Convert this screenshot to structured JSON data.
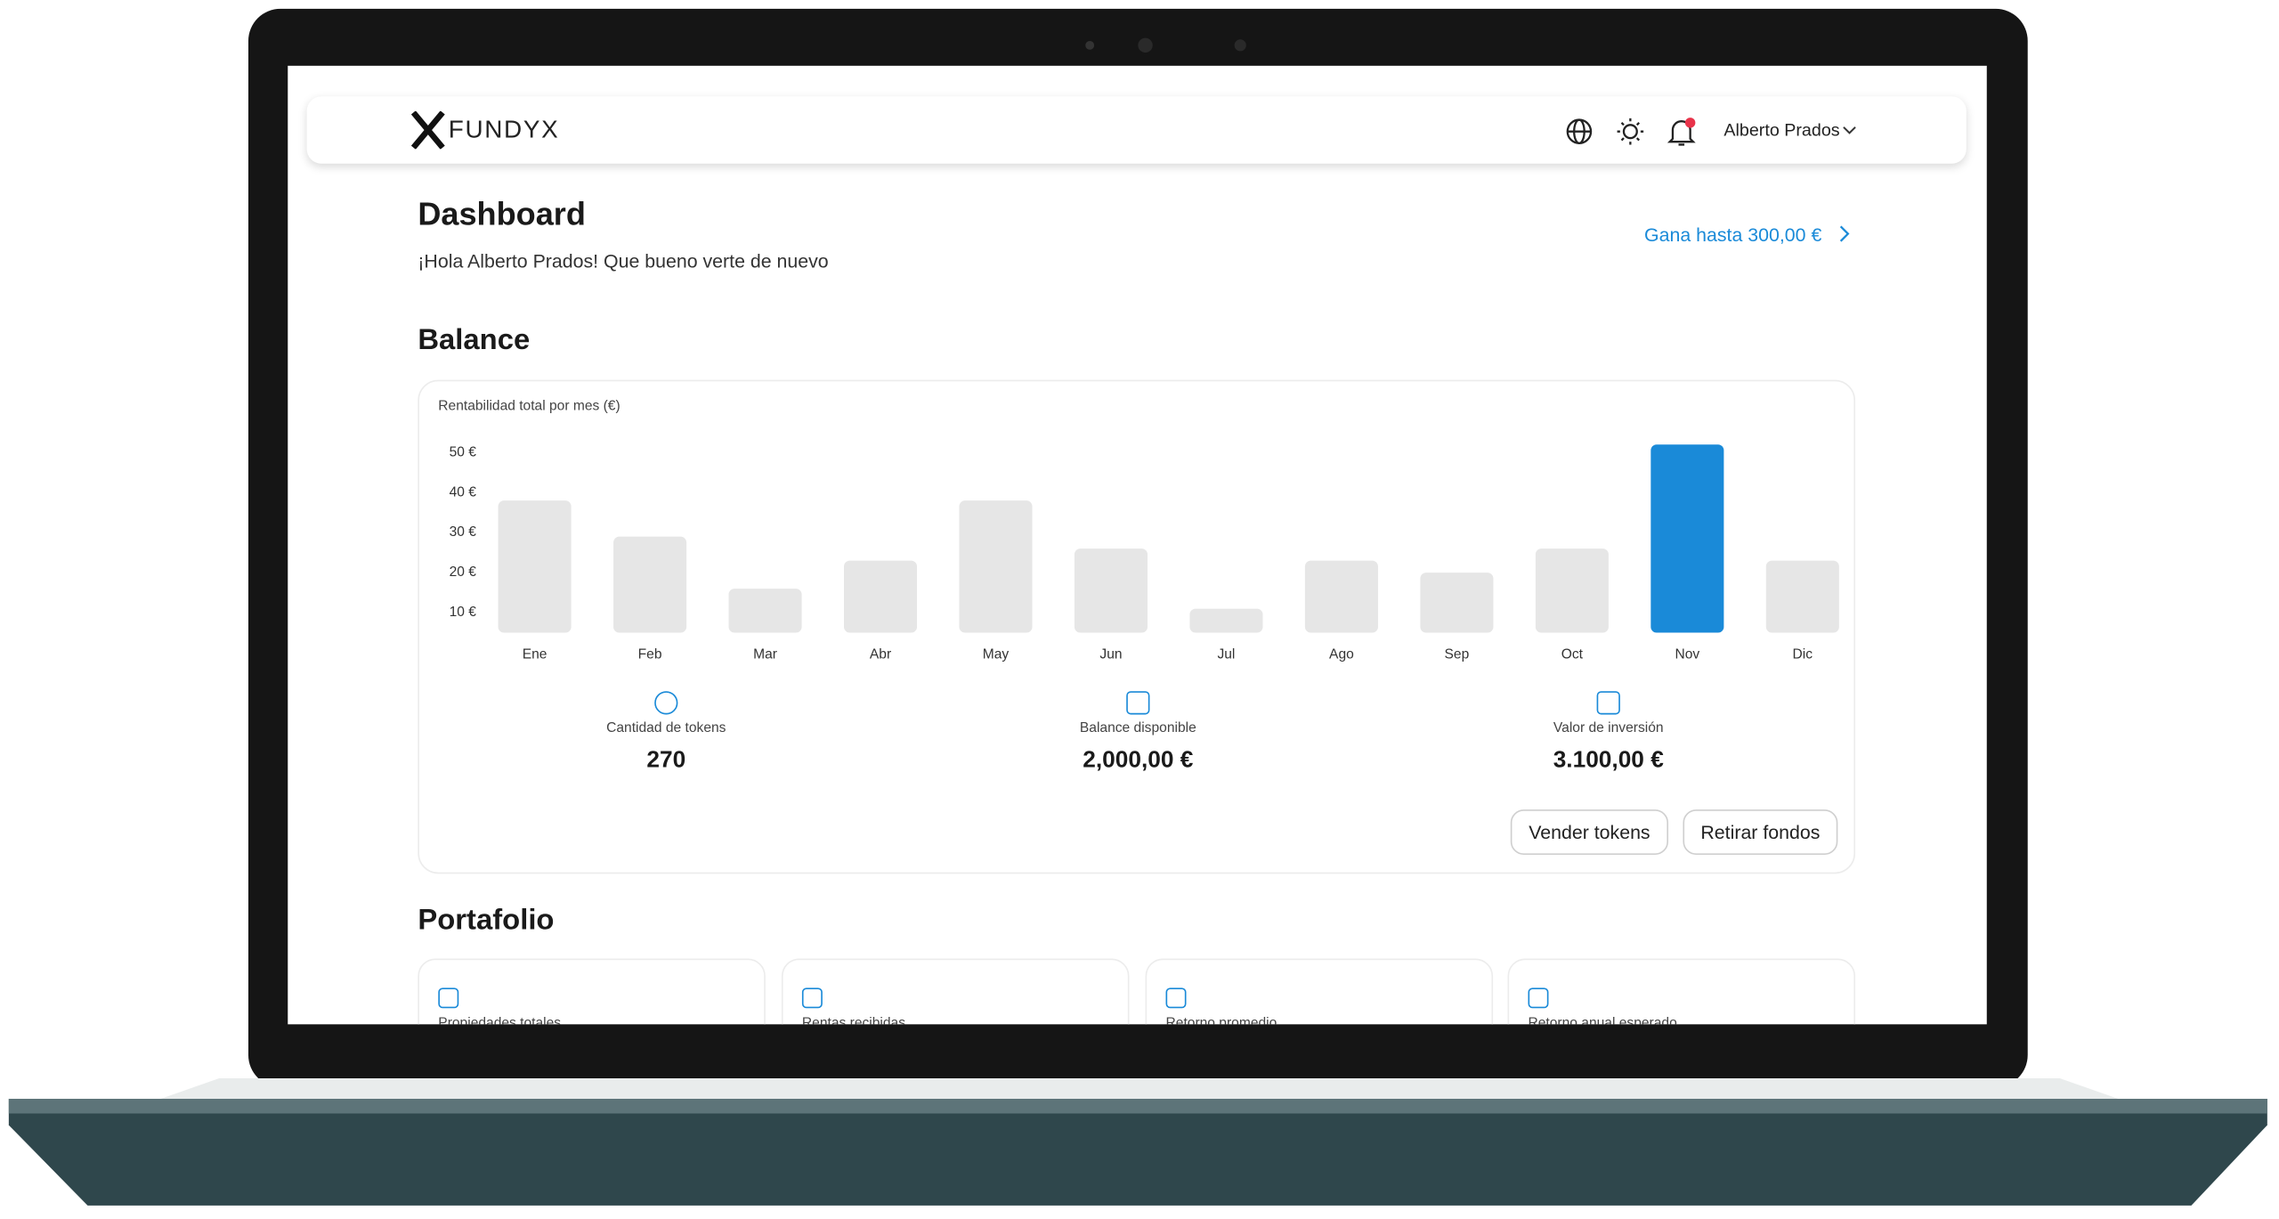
{
  "header": {
    "brand": "FUNDYX",
    "user": "Alberto Prados"
  },
  "page": {
    "title": "Dashboard",
    "greeting": "¡Hola Alberto Prados! Que bueno verte de nuevo",
    "promo": "Gana hasta 300,00 €"
  },
  "balance": {
    "title": "Balance",
    "chart": {
      "type": "bar",
      "title": "Rentabilidad total por mes (€)",
      "categories": [
        "Ene",
        "Feb",
        "Mar",
        "Abr",
        "May",
        "Jun",
        "Jul",
        "Ago",
        "Sep",
        "Oct",
        "Nov",
        "Dic"
      ],
      "values": [
        38,
        29,
        16,
        23,
        38,
        26,
        11,
        23,
        20,
        26,
        52,
        23
      ],
      "bar_colors": [
        "#e6e6e6",
        "#e6e6e6",
        "#e6e6e6",
        "#e6e6e6",
        "#e6e6e6",
        "#e6e6e6",
        "#e6e6e6",
        "#e6e6e6",
        "#e6e6e6",
        "#e6e6e6",
        "#1a8ad8",
        "#e6e6e6"
      ],
      "ylim": [
        5,
        55
      ],
      "yticks": [
        {
          "value": 10,
          "label": "10 €"
        },
        {
          "value": 20,
          "label": "20 €"
        },
        {
          "value": 30,
          "label": "30 €"
        },
        {
          "value": 40,
          "label": "40 €"
        },
        {
          "value": 50,
          "label": "50 €"
        }
      ],
      "grid": false
    },
    "stats": [
      {
        "label": "Cantidad de tokens",
        "value": "270"
      },
      {
        "label": "Balance disponible",
        "value": "2,000,00 €"
      },
      {
        "label": "Valor de inversión",
        "value": "3.100,00 €"
      }
    ],
    "buttons": [
      "Vender tokens",
      "Retirar fondos"
    ]
  },
  "portfolio": {
    "title": "Portafolio",
    "cards": [
      "Propiedades totales",
      "Rentas recibidas",
      "Retorno promedio",
      "Retorno anual esperado"
    ]
  }
}
